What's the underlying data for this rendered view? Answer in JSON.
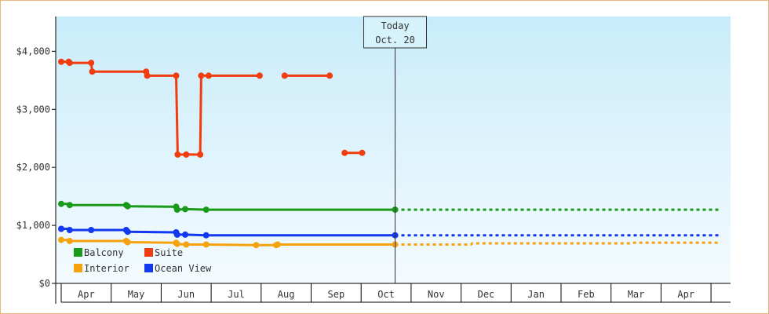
{
  "chart_data": {
    "type": "line",
    "title": "",
    "xlabel": "",
    "ylabel": "",
    "ylim": [
      0,
      4600
    ],
    "y_ticks": [
      {
        "value": 0,
        "label": "$0"
      },
      {
        "value": 1000,
        "label": "$1,000"
      },
      {
        "value": 2000,
        "label": "$2,000"
      },
      {
        "value": 3000,
        "label": "$3,000"
      },
      {
        "value": 4000,
        "label": "$4,000"
      }
    ],
    "x_range": [
      -0.05,
      13.2
    ],
    "months": [
      "Apr",
      "May",
      "Jun",
      "Jul",
      "Aug",
      "Sep",
      "Oct",
      "Nov",
      "Dec",
      "Jan",
      "Feb",
      "Mar",
      "Apr"
    ],
    "grid": false,
    "legend_position": "bottom-left",
    "today": {
      "x": 6.68,
      "line1": "Today",
      "line2": "Oct. 20"
    },
    "series": [
      {
        "name": "Balcony",
        "color": "#1a9a1a",
        "segments": [
          [
            [
              -0.05,
              1370
            ],
            [
              0.15,
              1370
            ],
            [
              0.17,
              1350
            ],
            [
              1.3,
              1350
            ],
            [
              1.33,
              1330
            ],
            [
              2.3,
              1320
            ],
            [
              2.32,
              1270
            ],
            [
              2.48,
              1280
            ],
            [
              2.9,
              1270
            ],
            [
              6.68,
              1270
            ]
          ]
        ],
        "dotted": [
          [
            6.68,
            1270
          ],
          [
            13.2,
            1270
          ]
        ]
      },
      {
        "name": "Suite",
        "color": "#f03c0f",
        "segments": [
          [
            [
              -0.05,
              3820
            ],
            [
              0.15,
              3820
            ],
            [
              0.17,
              3800
            ],
            [
              0.6,
              3800
            ],
            [
              0.62,
              3650
            ],
            [
              1.7,
              3650
            ],
            [
              1.72,
              3580
            ],
            [
              2.3,
              3580
            ],
            [
              2.33,
              2220
            ],
            [
              2.5,
              2220
            ],
            [
              2.78,
              2220
            ],
            [
              2.8,
              3580
            ],
            [
              2.95,
              3580
            ],
            [
              3.97,
              3580
            ]
          ],
          [
            [
              4.47,
              3580
            ],
            [
              5.37,
              3580
            ]
          ],
          [
            [
              5.67,
              2250
            ],
            [
              6.02,
              2250
            ]
          ]
        ],
        "dotted": []
      },
      {
        "name": "Interior",
        "color": "#f5a20f",
        "segments": [
          [
            [
              -0.05,
              750
            ],
            [
              0.15,
              750
            ],
            [
              0.17,
              730
            ],
            [
              1.3,
              730
            ],
            [
              1.33,
              710
            ],
            [
              2.3,
              700
            ],
            [
              2.32,
              680
            ],
            [
              2.5,
              670
            ],
            [
              2.9,
              670
            ],
            [
              3.9,
              660
            ],
            [
              4.3,
              660
            ],
            [
              4.33,
              670
            ],
            [
              6.68,
              670
            ]
          ]
        ],
        "dotted": [
          [
            6.68,
            670
          ],
          [
            8.2,
            670
          ],
          [
            8.22,
            690
          ],
          [
            11.4,
            690
          ],
          [
            11.42,
            700
          ],
          [
            13.2,
            700
          ]
        ]
      },
      {
        "name": "Ocean View",
        "color": "#1238f0",
        "segments": [
          [
            [
              -0.05,
              940
            ],
            [
              0.15,
              940
            ],
            [
              0.17,
              920
            ],
            [
              1.3,
              920
            ],
            [
              1.33,
              890
            ],
            [
              2.3,
              880
            ],
            [
              2.32,
              840
            ],
            [
              2.48,
              840
            ],
            [
              2.9,
              830
            ],
            [
              6.68,
              830
            ]
          ]
        ],
        "dotted": [
          [
            6.68,
            830
          ],
          [
            13.2,
            830
          ]
        ]
      }
    ],
    "markers": {
      "Balcony": [
        [
          0.0,
          1370
        ],
        [
          0.17,
          1350
        ],
        [
          1.3,
          1350
        ],
        [
          1.33,
          1330
        ],
        [
          2.3,
          1320
        ],
        [
          2.32,
          1270
        ],
        [
          2.48,
          1280
        ],
        [
          2.9,
          1270
        ],
        [
          6.68,
          1270
        ]
      ],
      "Suite": [
        [
          0.0,
          3820
        ],
        [
          0.15,
          3820
        ],
        [
          0.17,
          3800
        ],
        [
          0.6,
          3800
        ],
        [
          0.62,
          3650
        ],
        [
          1.7,
          3650
        ],
        [
          1.72,
          3580
        ],
        [
          2.3,
          3580
        ],
        [
          2.33,
          2220
        ],
        [
          2.5,
          2220
        ],
        [
          2.78,
          2220
        ],
        [
          2.8,
          3580
        ],
        [
          2.95,
          3580
        ],
        [
          3.97,
          3580
        ],
        [
          4.47,
          3580
        ],
        [
          5.37,
          3580
        ],
        [
          5.67,
          2250
        ],
        [
          6.02,
          2250
        ]
      ],
      "Interior": [
        [
          0.0,
          750
        ],
        [
          0.17,
          730
        ],
        [
          1.3,
          730
        ],
        [
          1.33,
          710
        ],
        [
          2.3,
          700
        ],
        [
          2.32,
          680
        ],
        [
          2.5,
          670
        ],
        [
          2.9,
          670
        ],
        [
          3.9,
          660
        ],
        [
          4.3,
          660
        ],
        [
          4.33,
          670
        ],
        [
          6.68,
          670
        ]
      ],
      "Ocean View": [
        [
          0.0,
          940
        ],
        [
          0.17,
          920
        ],
        [
          0.6,
          920
        ],
        [
          1.3,
          920
        ],
        [
          1.33,
          890
        ],
        [
          2.3,
          880
        ],
        [
          2.32,
          840
        ],
        [
          2.48,
          840
        ],
        [
          2.9,
          830
        ],
        [
          6.68,
          830
        ]
      ]
    },
    "legend": [
      {
        "name": "Balcony",
        "color": "#1a9a1a"
      },
      {
        "name": "Suite",
        "color": "#f03c0f"
      },
      {
        "name": "Interior",
        "color": "#f5a20f"
      },
      {
        "name": "Ocean View",
        "color": "#1238f0"
      }
    ],
    "background_gradient": [
      "#c9ecfa",
      "#f4fbfe"
    ]
  }
}
